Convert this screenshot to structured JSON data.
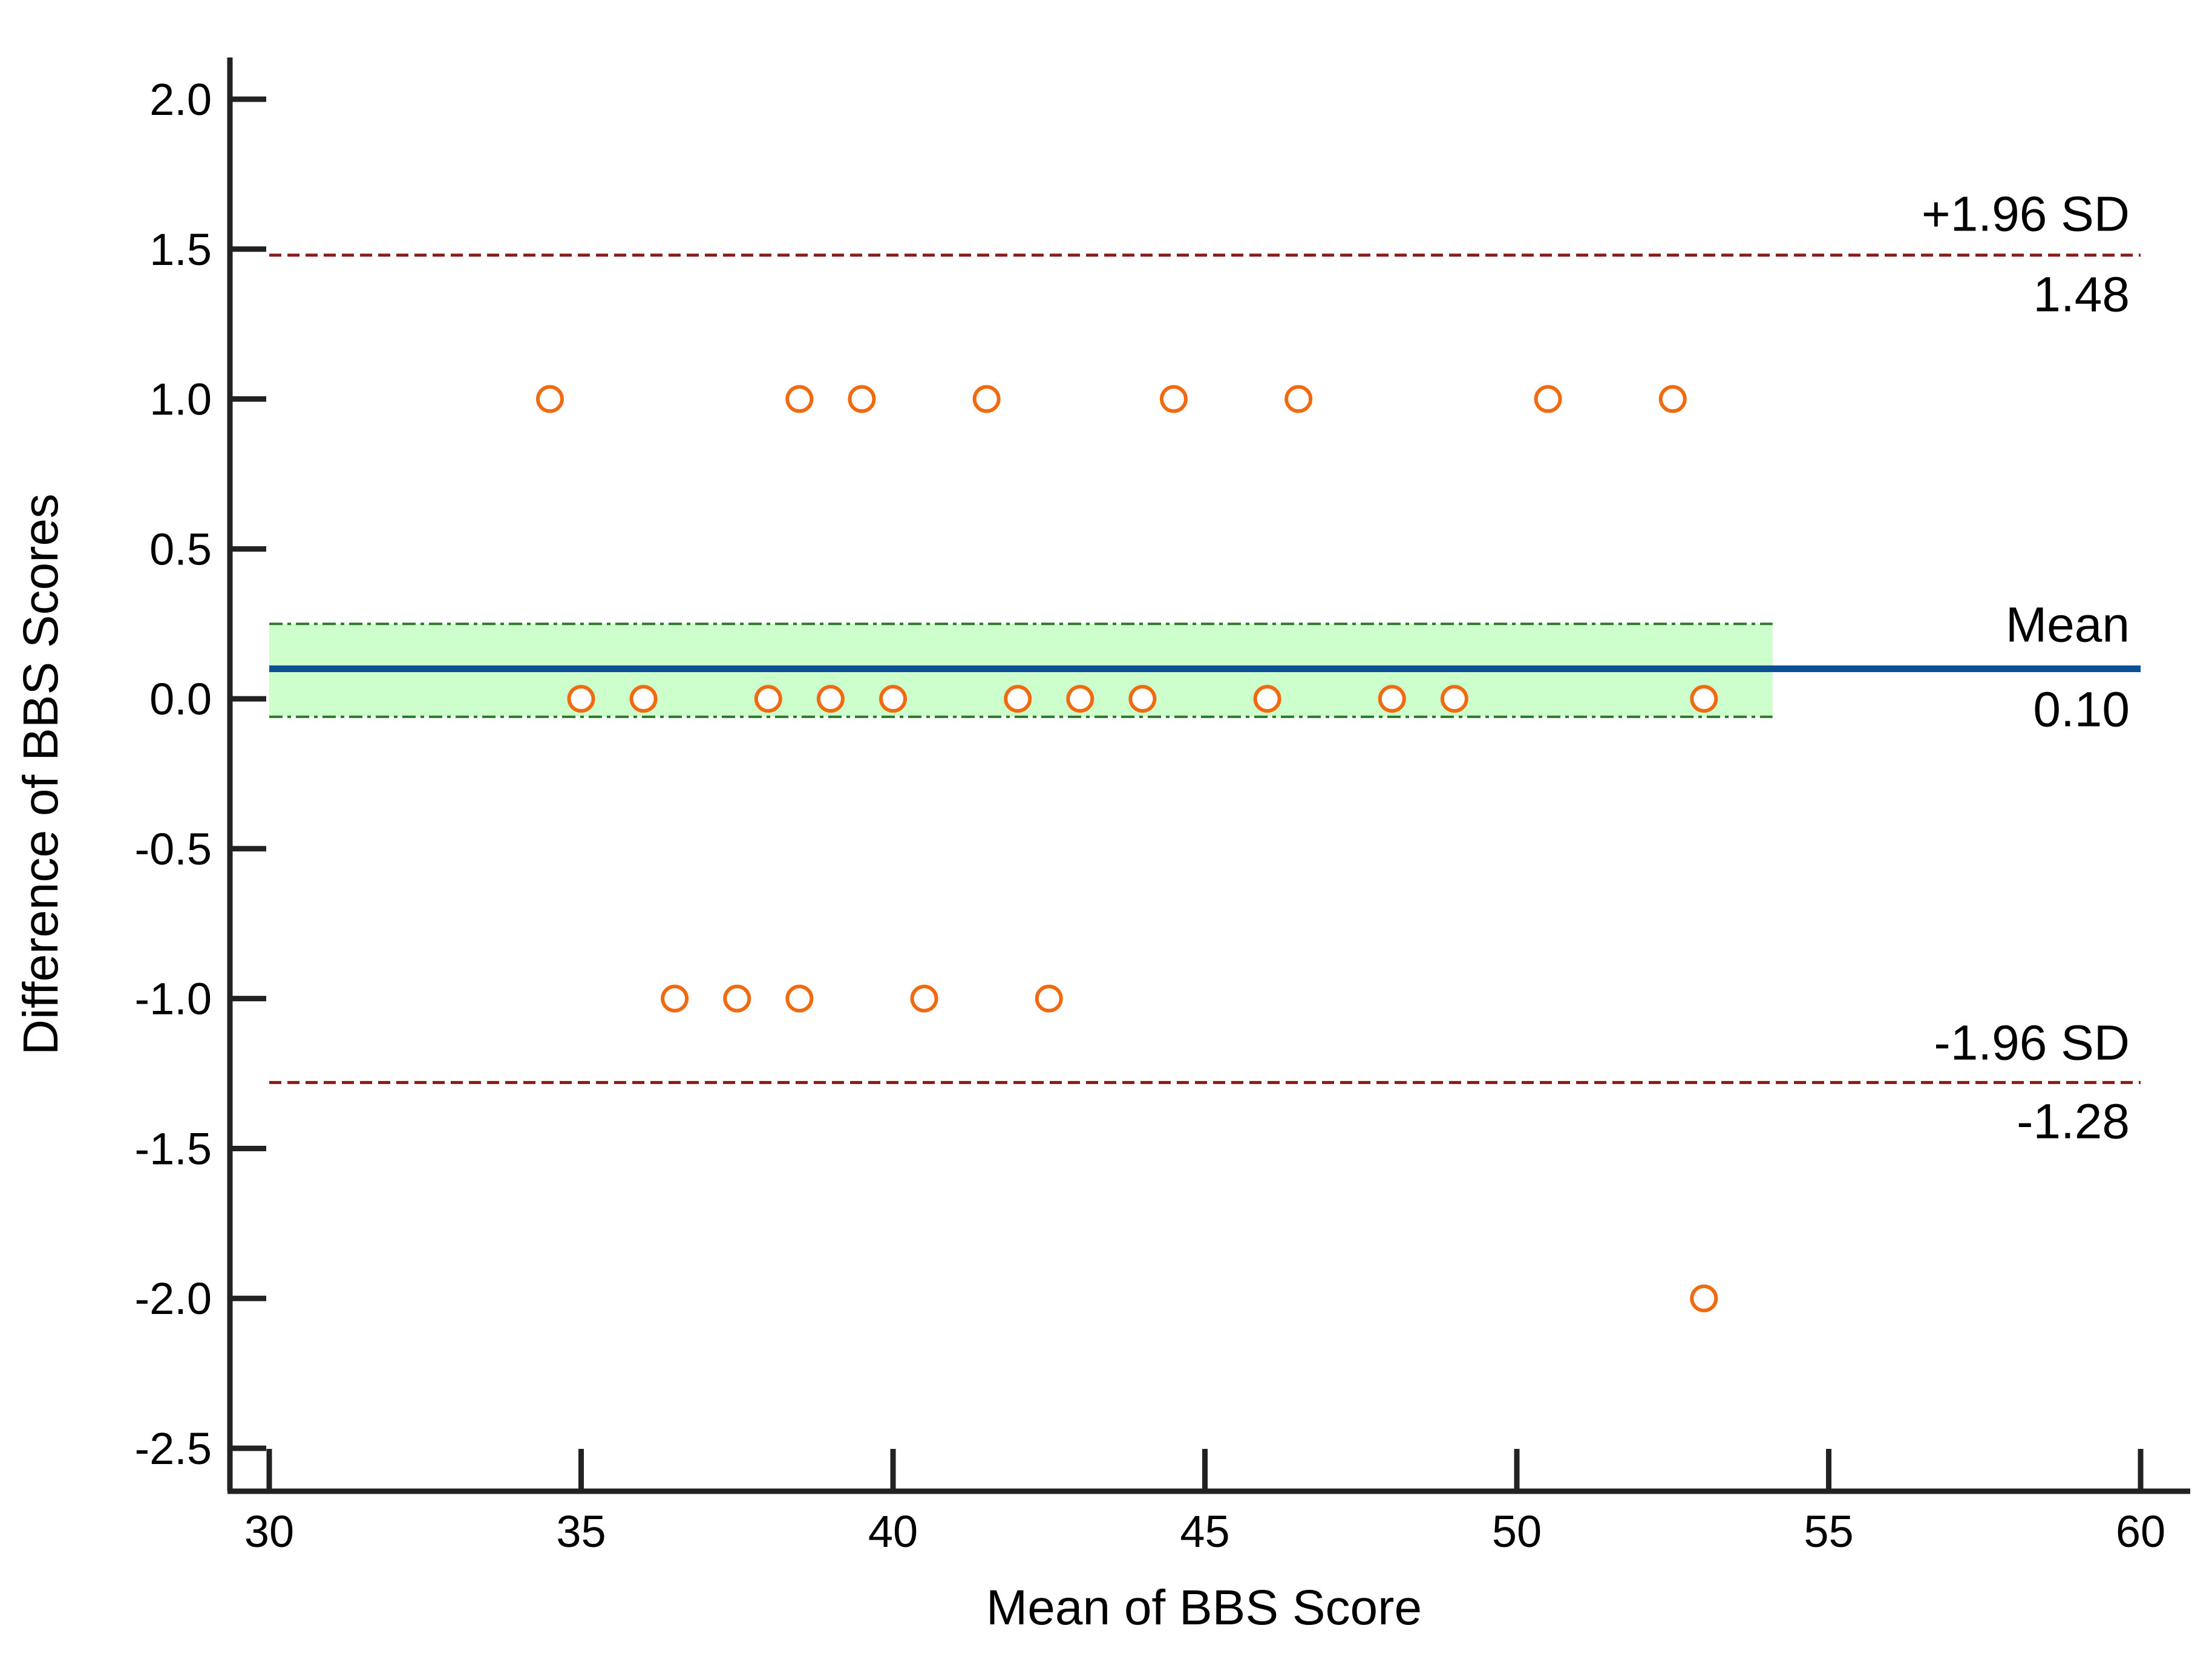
{
  "chart_data": {
    "type": "scatter",
    "title": "",
    "xlabel": "Mean of BBS Score",
    "ylabel": "Difference of BBS Scores",
    "xlim": [
      30,
      60
    ],
    "ylim": [
      -2.5,
      2.0
    ],
    "xticks": [
      "30",
      "35",
      "40",
      "45",
      "50",
      "55",
      "60"
    ],
    "yticks": [
      "2.0",
      "1.5",
      "1.0",
      "0.5",
      "0.0",
      "-0.5",
      "-1.0",
      "-1.5",
      "-2.0",
      "-2.5"
    ],
    "grid": false,
    "points": [
      {
        "x": 34.5,
        "y": 1
      },
      {
        "x": 38.5,
        "y": 1
      },
      {
        "x": 39.5,
        "y": 1
      },
      {
        "x": 41.5,
        "y": 1
      },
      {
        "x": 44.5,
        "y": 1
      },
      {
        "x": 46.5,
        "y": 1
      },
      {
        "x": 50.5,
        "y": 1
      },
      {
        "x": 52.5,
        "y": 1
      },
      {
        "x": 35,
        "y": 0
      },
      {
        "x": 36,
        "y": 0
      },
      {
        "x": 38,
        "y": 0
      },
      {
        "x": 39,
        "y": 0
      },
      {
        "x": 40,
        "y": 0
      },
      {
        "x": 42,
        "y": 0
      },
      {
        "x": 43,
        "y": 0
      },
      {
        "x": 44,
        "y": 0
      },
      {
        "x": 46,
        "y": 0
      },
      {
        "x": 48,
        "y": 0
      },
      {
        "x": 49,
        "y": 0
      },
      {
        "x": 53,
        "y": 0
      },
      {
        "x": 36.5,
        "y": -1
      },
      {
        "x": 37.5,
        "y": -1
      },
      {
        "x": 38.5,
        "y": -1
      },
      {
        "x": 40.5,
        "y": -1
      },
      {
        "x": 42.5,
        "y": -1
      },
      {
        "x": 53,
        "y": -2
      }
    ],
    "mean_line": {
      "label": "Mean",
      "value_label": "0.10",
      "value": 0.1,
      "ci": [
        -0.06,
        0.25
      ],
      "x_end": 60,
      "ci_x_end": 54.1
    },
    "upper_loa": {
      "label": "+1.96 SD",
      "value_label": "1.48",
      "value": 1.48
    },
    "lower_loa": {
      "label": "-1.96 SD",
      "value_label": "-1.28",
      "value": -1.28
    },
    "colors": {
      "points": "#f26a10",
      "mean_line": "#0b4f96",
      "loa_line": "#8b1a1a",
      "ci_fill": "#ccffcc",
      "ci_line": "#2a7a2a",
      "axis": "#222222"
    }
  }
}
